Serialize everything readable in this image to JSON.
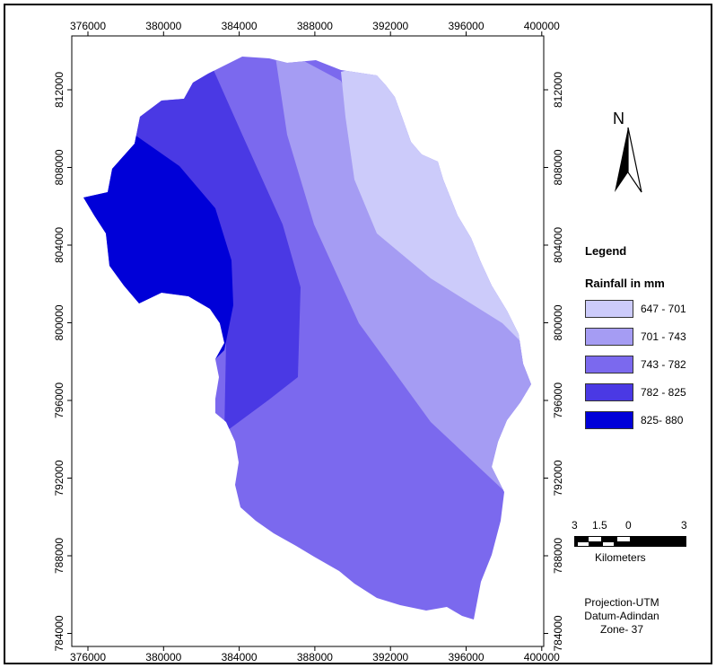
{
  "map": {
    "x_ticks": [
      "376000",
      "380000",
      "384000",
      "388000",
      "392000",
      "396000",
      "400000"
    ],
    "y_ticks": [
      "812000",
      "808000",
      "804000",
      "800000",
      "796000",
      "792000",
      "788000",
      "784000"
    ]
  },
  "legend": {
    "title": "Legend",
    "subtitle": "Rainfall in mm",
    "classes": [
      {
        "label": "647 - 701",
        "color": "#cccbfa"
      },
      {
        "label": "701 - 743",
        "color": "#a59cf3"
      },
      {
        "label": "743 - 782",
        "color": "#7b69ee"
      },
      {
        "label": "782 - 825",
        "color": "#4a39e4"
      },
      {
        "label": "825- 880",
        "color": "#0000d8"
      }
    ]
  },
  "north_arrow": {
    "label": "N",
    "icon": "north-arrow-icon"
  },
  "scale_bar": {
    "ticks": [
      "3",
      "1.5",
      "0",
      "3"
    ],
    "units": "Kilometers"
  },
  "projection": {
    "line1": "Projection-UTM",
    "line2": "Datum-Adindan",
    "line3": "Zone- 37"
  }
}
